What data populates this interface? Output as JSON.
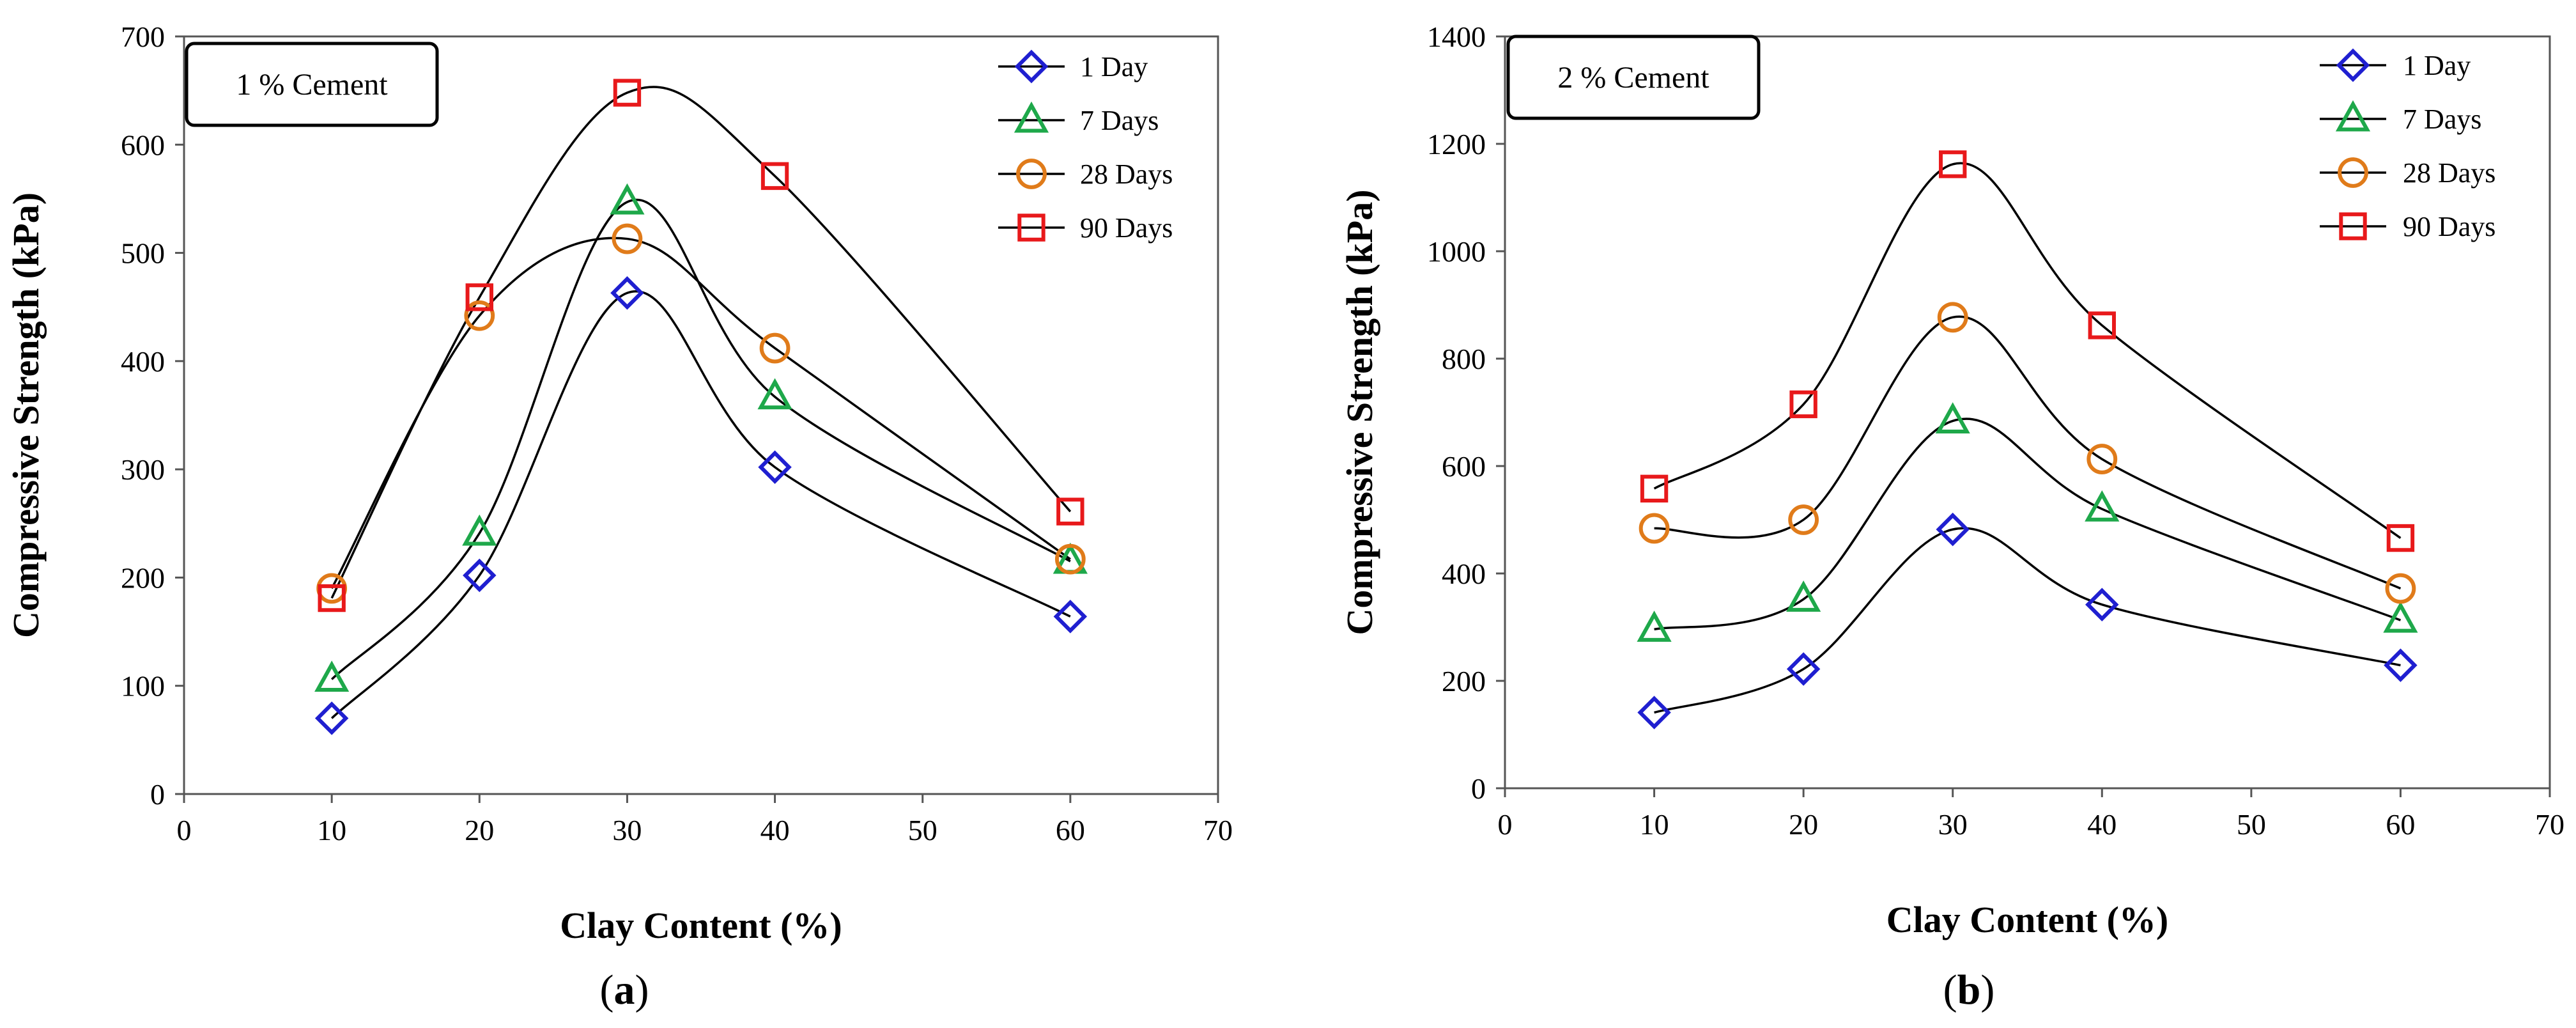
{
  "chart_data": [
    {
      "type": "scatter",
      "panel_label": "a",
      "inset_label": "1 % Cement",
      "xlabel": "Clay Content (%)",
      "ylabel": "Compressive Strength (kPa)",
      "xlim": [
        0,
        70
      ],
      "ylim": [
        0,
        700
      ],
      "xticks": [
        0,
        10,
        20,
        30,
        40,
        50,
        60,
        70
      ],
      "yticks": [
        0,
        100,
        200,
        300,
        400,
        500,
        600,
        700
      ],
      "grid": false,
      "legend_position": "top-right",
      "x": [
        10,
        20,
        30,
        40,
        60
      ],
      "series": [
        {
          "name": "1 Day",
          "marker": "diamond",
          "color": "#1f1fd0",
          "values": [
            70,
            202,
            463,
            302,
            164
          ]
        },
        {
          "name": "7 Days",
          "marker": "triangle",
          "color": "#1ea84a",
          "values": [
            106,
            241,
            547,
            367,
            215
          ]
        },
        {
          "name": "28 Days",
          "marker": "circle",
          "color": "#e07b1a",
          "values": [
            190,
            442,
            513,
            412,
            217
          ]
        },
        {
          "name": "90 Days",
          "marker": "square",
          "color": "#e8191b",
          "values": [
            181,
            459,
            648,
            571,
            261
          ]
        }
      ]
    },
    {
      "type": "scatter",
      "panel_label": "b",
      "inset_label": "2 % Cement",
      "xlabel": "Clay Content (%)",
      "ylabel": "Compressive Strength (kPa)",
      "xlim": [
        0,
        70
      ],
      "ylim": [
        0,
        1400
      ],
      "xticks": [
        0,
        10,
        20,
        30,
        40,
        50,
        60,
        70
      ],
      "yticks": [
        0,
        200,
        400,
        600,
        800,
        1000,
        1200,
        1400
      ],
      "grid": false,
      "legend_position": "top-right",
      "x": [
        10,
        20,
        30,
        40,
        60
      ],
      "series": [
        {
          "name": "1 Day",
          "marker": "diamond",
          "color": "#1f1fd0",
          "values": [
            141,
            222,
            482,
            342,
            229
          ]
        },
        {
          "name": "7 Days",
          "marker": "triangle",
          "color": "#1ea84a",
          "values": [
            296,
            352,
            684,
            520,
            313
          ]
        },
        {
          "name": "28 Days",
          "marker": "circle",
          "color": "#e07b1a",
          "values": [
            484,
            500,
            877,
            613,
            372
          ]
        },
        {
          "name": "90 Days",
          "marker": "square",
          "color": "#e8191b",
          "values": [
            558,
            715,
            1162,
            862,
            466
          ]
        }
      ]
    }
  ]
}
